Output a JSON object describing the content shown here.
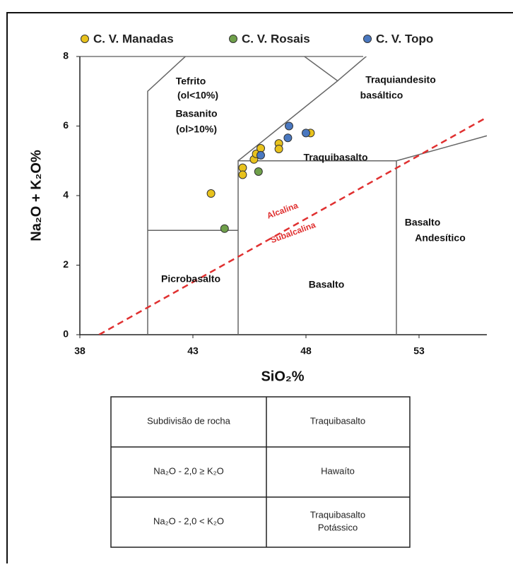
{
  "chart_data": {
    "type": "scatter",
    "xlabel": "SiO₂%",
    "ylabel": "Na₂O + K₂O%",
    "xlim": [
      38,
      56
    ],
    "ylim": [
      0,
      8
    ],
    "xticks": [
      38,
      43,
      48,
      53
    ],
    "yticks": [
      0,
      2,
      4,
      6,
      8
    ],
    "legend": "top",
    "series": [
      {
        "name": "C. V. Manadas",
        "color": "#e8c21c",
        "x": [
          43.8,
          45.2,
          45.2,
          45.7,
          45.8,
          46.0,
          46.8,
          46.8,
          48.2
        ],
        "values": [
          4.06,
          4.8,
          4.6,
          5.04,
          5.2,
          5.36,
          5.5,
          5.34,
          5.8
        ]
      },
      {
        "name": "C. V.  Rosais",
        "color": "#6fa04a",
        "x": [
          44.4,
          45.9
        ],
        "values": [
          3.05,
          4.69
        ]
      },
      {
        "name": "C. V. Topo",
        "color": "#4a78c0",
        "x": [
          46.0,
          47.25,
          47.2,
          48.0
        ],
        "values": [
          5.16,
          6.0,
          5.66,
          5.8
        ]
      }
    ],
    "boundaries": [
      {
        "x": [
          41,
          41,
          45
        ],
        "y": [
          0,
          7,
          9.4
        ]
      },
      {
        "x": [
          41,
          45
        ],
        "y": [
          3,
          3
        ]
      },
      {
        "x": [
          45,
          45,
          52,
          52
        ],
        "y": [
          0,
          5,
          5,
          0
        ]
      },
      {
        "x": [
          52,
          57
        ],
        "y": [
          5,
          5.9
        ]
      },
      {
        "x": [
          45,
          49.4,
          45
        ],
        "y": [
          5,
          7.3,
          9.4
        ]
      },
      {
        "x": [
          49.4,
          53
        ],
        "y": [
          7.3,
          9.3
        ]
      }
    ],
    "divider": {
      "x": [
        38.85,
        56
      ],
      "y": [
        0,
        6.25
      ],
      "color": "#e03030"
    },
    "annotations": [
      "Tefrito",
      "(ol<10%)",
      "Basanito",
      "(ol>10%)",
      "Traquiandesito",
      "basáltico",
      "Traquibasalto",
      "Picrobasalto",
      "Basalto",
      "Basalto",
      "Andesítico",
      "Alcalina",
      "Subalcalina"
    ]
  },
  "table": {
    "header": [
      "Subdivisão de rocha",
      "Traquibasalto"
    ],
    "rows": [
      [
        [
          "Na₂O - 2,0 ≥ K₂O"
        ],
        [
          "Hawaíto"
        ]
      ],
      [
        [
          "Na₂O - 2,0 < K₂O"
        ],
        [
          "Traquibasalto",
          "Potássico"
        ]
      ]
    ]
  }
}
